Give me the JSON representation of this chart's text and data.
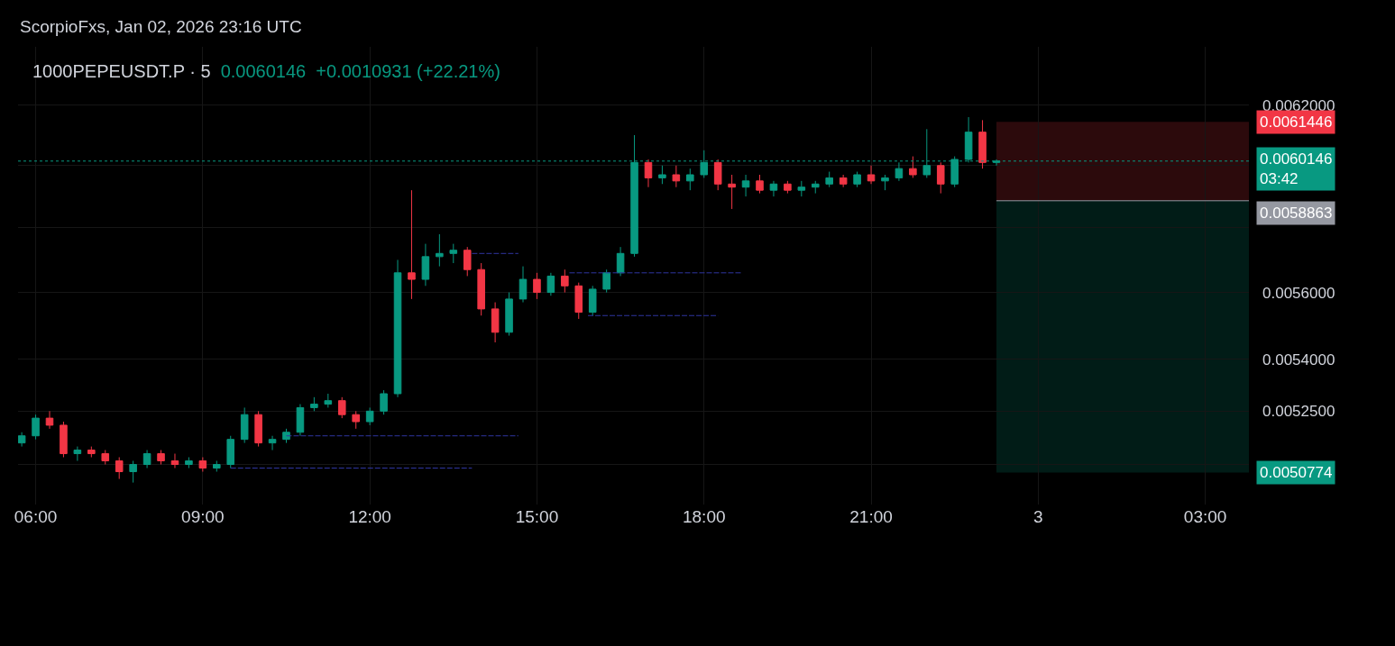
{
  "chart_data": {
    "type": "candlestick",
    "title": "1000PEPEUSDT.P · 5",
    "subtitle": "0.0060146  +0.0010931 (+22.21%)",
    "annotations": [
      "ScorpioFxs, Jan 02, 2026 23:16 UTC"
    ],
    "colors": [
      "#089981",
      "#089981",
      "#f23645",
      "#f23645",
      "#089981",
      "#f23645",
      "#f23645",
      "#f23645",
      "#089981",
      "#089981",
      "#f23645",
      "#f23645",
      "#089981",
      "#f23645",
      "#089981",
      "#089981",
      "#089981",
      "#f23645",
      "#089981",
      "#089981",
      "#089981",
      "#089981",
      "#089981",
      "#f23645",
      "#f23645",
      "#089981",
      "#089981",
      "#089981",
      "#f23645",
      "#089981",
      "#089981",
      "#089981",
      "#f23645",
      "#f23645",
      "#f23645",
      "#089981",
      "#089981",
      "#f23645",
      "#089981",
      "#f23645",
      "#f23645",
      "#089981",
      "#089981",
      "#089981",
      "#089981",
      "#f23645",
      "#089981",
      "#f23645",
      "#089981",
      "#089981",
      "#f23645",
      "#f23645",
      "#089981",
      "#f23645",
      "#089981",
      "#f23645",
      "#089981",
      "#089981",
      "#089981",
      "#f23645",
      "#089981",
      "#f23645",
      "#089981",
      "#089981",
      "#f23645",
      "#089981",
      "#f23645",
      "#089981",
      "#089981",
      "#f23645",
      "#089981"
    ],
    "x": [
      "2026-01-02T05:45",
      "2026-01-02T06:00",
      "2026-01-02T06:15",
      "2026-01-02T06:30",
      "2026-01-02T06:45",
      "2026-01-02T07:00",
      "2026-01-02T07:15",
      "2026-01-02T07:30",
      "2026-01-02T07:45",
      "2026-01-02T08:00",
      "2026-01-02T08:15",
      "2026-01-02T08:30",
      "2026-01-02T08:45",
      "2026-01-02T09:00",
      "2026-01-02T09:15",
      "2026-01-02T09:30",
      "2026-01-02T09:45",
      "2026-01-02T10:00",
      "2026-01-02T10:15",
      "2026-01-02T10:30",
      "2026-01-02T10:45",
      "2026-01-02T11:00",
      "2026-01-02T11:15",
      "2026-01-02T11:30",
      "2026-01-02T11:45",
      "2026-01-02T12:00",
      "2026-01-02T12:15",
      "2026-01-02T12:30",
      "2026-01-02T12:45",
      "2026-01-02T13:00",
      "2026-01-02T13:15",
      "2026-01-02T13:30",
      "2026-01-02T13:45",
      "2026-01-02T14:00",
      "2026-01-02T14:15",
      "2026-01-02T14:30",
      "2026-01-02T14:45",
      "2026-01-02T15:00",
      "2026-01-02T15:15",
      "2026-01-02T15:30",
      "2026-01-02T15:45",
      "2026-01-02T16:00",
      "2026-01-02T16:15",
      "2026-01-02T16:30",
      "2026-01-02T16:45",
      "2026-01-02T17:00",
      "2026-01-02T17:15",
      "2026-01-02T17:30",
      "2026-01-02T17:45",
      "2026-01-02T18:00",
      "2026-01-02T18:15",
      "2026-01-02T18:30",
      "2026-01-02T18:45",
      "2026-01-02T19:00",
      "2026-01-02T19:15",
      "2026-01-02T19:30",
      "2026-01-02T19:45",
      "2026-01-02T20:00",
      "2026-01-02T20:15",
      "2026-01-02T20:30",
      "2026-01-02T20:45",
      "2026-01-02T21:00",
      "2026-01-02T21:15",
      "2026-01-02T21:30",
      "2026-01-02T21:45",
      "2026-01-02T22:00",
      "2026-01-02T22:15",
      "2026-01-02T22:30",
      "2026-01-02T22:45",
      "2026-01-02T23:00",
      "2026-01-02T23:15"
    ],
    "ohlc": [
      [
        0.00516,
        0.00519,
        0.00515,
        0.00518
      ],
      [
        0.00518,
        0.00524,
        0.00517,
        0.00523
      ],
      [
        0.00523,
        0.00525,
        0.0052,
        0.00521
      ],
      [
        0.00521,
        0.00522,
        0.00512,
        0.00513
      ],
      [
        0.00513,
        0.00515,
        0.00511,
        0.00514
      ],
      [
        0.00514,
        0.00515,
        0.00512,
        0.00513
      ],
      [
        0.00513,
        0.00514,
        0.0051,
        0.00511
      ],
      [
        0.00511,
        0.00512,
        0.00506,
        0.00508
      ],
      [
        0.00508,
        0.00511,
        0.00505,
        0.0051
      ],
      [
        0.0051,
        0.00514,
        0.00509,
        0.00513
      ],
      [
        0.00513,
        0.00514,
        0.0051,
        0.00511
      ],
      [
        0.00511,
        0.00513,
        0.00509,
        0.0051
      ],
      [
        0.0051,
        0.00512,
        0.00509,
        0.00511
      ],
      [
        0.00511,
        0.00512,
        0.00508,
        0.00509
      ],
      [
        0.00509,
        0.00511,
        0.00508,
        0.0051
      ],
      [
        0.0051,
        0.00518,
        0.00509,
        0.00517
      ],
      [
        0.00517,
        0.00526,
        0.00516,
        0.00524
      ],
      [
        0.00524,
        0.00525,
        0.00515,
        0.00516
      ],
      [
        0.00516,
        0.00518,
        0.00514,
        0.00517
      ],
      [
        0.00517,
        0.0052,
        0.00516,
        0.00519
      ],
      [
        0.00519,
        0.00527,
        0.00518,
        0.00526
      ],
      [
        0.00526,
        0.00529,
        0.00525,
        0.00527
      ],
      [
        0.00527,
        0.0053,
        0.00526,
        0.00528
      ],
      [
        0.00528,
        0.00529,
        0.00523,
        0.00524
      ],
      [
        0.00524,
        0.00525,
        0.0052,
        0.00522
      ],
      [
        0.00522,
        0.00526,
        0.00521,
        0.00525
      ],
      [
        0.00525,
        0.00531,
        0.00524,
        0.0053
      ],
      [
        0.0053,
        0.0057,
        0.00529,
        0.00566
      ],
      [
        0.00566,
        0.00592,
        0.00558,
        0.00564
      ],
      [
        0.00564,
        0.00575,
        0.00562,
        0.00571
      ],
      [
        0.00571,
        0.00578,
        0.00568,
        0.00572
      ],
      [
        0.00572,
        0.00575,
        0.00569,
        0.00573
      ],
      [
        0.00573,
        0.00574,
        0.00565,
        0.00567
      ],
      [
        0.00567,
        0.00569,
        0.00553,
        0.00555
      ],
      [
        0.00555,
        0.00557,
        0.00545,
        0.00548
      ],
      [
        0.00548,
        0.0056,
        0.00547,
        0.00558
      ],
      [
        0.00558,
        0.00568,
        0.00557,
        0.00564
      ],
      [
        0.00564,
        0.00566,
        0.00558,
        0.0056
      ],
      [
        0.0056,
        0.00566,
        0.00559,
        0.00565
      ],
      [
        0.00565,
        0.00567,
        0.0056,
        0.00562
      ],
      [
        0.00562,
        0.00563,
        0.00552,
        0.00554
      ],
      [
        0.00554,
        0.00562,
        0.00553,
        0.00561
      ],
      [
        0.00561,
        0.00567,
        0.0056,
        0.00566
      ],
      [
        0.00566,
        0.00574,
        0.00565,
        0.00572
      ],
      [
        0.00572,
        0.0061,
        0.00571,
        0.00601
      ],
      [
        0.00601,
        0.00602,
        0.00593,
        0.00596
      ],
      [
        0.00596,
        0.006,
        0.00594,
        0.00597
      ],
      [
        0.00597,
        0.006,
        0.00593,
        0.00595
      ],
      [
        0.00595,
        0.00599,
        0.00592,
        0.00597
      ],
      [
        0.00597,
        0.00605,
        0.00596,
        0.00601
      ],
      [
        0.00601,
        0.00602,
        0.00592,
        0.00594
      ],
      [
        0.00594,
        0.00597,
        0.00586,
        0.00593
      ],
      [
        0.00593,
        0.00597,
        0.0059,
        0.00595
      ],
      [
        0.00595,
        0.00597,
        0.00591,
        0.00592
      ],
      [
        0.00592,
        0.00595,
        0.0059,
        0.00594
      ],
      [
        0.00594,
        0.00595,
        0.00591,
        0.00592
      ],
      [
        0.00592,
        0.00595,
        0.0059,
        0.00593
      ],
      [
        0.00593,
        0.00595,
        0.00591,
        0.00594
      ],
      [
        0.00594,
        0.00598,
        0.00593,
        0.00596
      ],
      [
        0.00596,
        0.00597,
        0.00593,
        0.00594
      ],
      [
        0.00594,
        0.00598,
        0.00593,
        0.00597
      ],
      [
        0.00597,
        0.006,
        0.00594,
        0.00595
      ],
      [
        0.00595,
        0.00597,
        0.00592,
        0.00596
      ],
      [
        0.00596,
        0.00601,
        0.00595,
        0.00599
      ],
      [
        0.00599,
        0.00603,
        0.00596,
        0.00597
      ],
      [
        0.00597,
        0.00612,
        0.00596,
        0.006
      ],
      [
        0.006,
        0.00601,
        0.00591,
        0.00594
      ],
      [
        0.00594,
        0.00603,
        0.00593,
        0.00602
      ],
      [
        0.00602,
        0.00616,
        0.00601,
        0.00611
      ],
      [
        0.00611,
        0.00615,
        0.00599,
        0.00601
      ],
      [
        0.00601,
        0.00602,
        0.006,
        0.0060146
      ]
    ],
    "series": [
      {
        "type": "line",
        "color": "#2f35a0",
        "line_style": "dashed",
        "x": [
          "2026-01-02T10:30",
          "2026-01-02T14:40"
        ],
        "values": [
          0.00518,
          0.00518
        ]
      },
      {
        "type": "line",
        "color": "#2f35a0",
        "line_style": "dashed",
        "x": [
          "2026-01-02T09:30",
          "2026-01-02T13:50"
        ],
        "values": [
          0.00509,
          0.00509
        ]
      },
      {
        "type": "line",
        "color": "#2f35a0",
        "line_style": "dashed",
        "x": [
          "2026-01-02T13:50",
          "2026-01-02T14:40"
        ],
        "values": [
          0.00572,
          0.00572
        ]
      },
      {
        "type": "line",
        "color": "#2f35a0",
        "line_style": "dashed",
        "x": [
          "2026-01-02T15:35",
          "2026-01-02T18:40"
        ],
        "values": [
          0.00566,
          0.00566
        ]
      },
      {
        "type": "line",
        "color": "#2f35a0",
        "line_style": "dashed",
        "x": [
          "2026-01-02T15:55",
          "2026-01-02T18:15"
        ],
        "values": [
          0.00553,
          0.00553
        ]
      }
    ],
    "bands": [
      {
        "axis": "y",
        "from": 0.0058863,
        "to": 0.0061446,
        "label": "0.0061446",
        "color": "#f23645"
      },
      {
        "axis": "y",
        "from": 0.0050774,
        "to": 0.0058863,
        "label": "0.0050774",
        "color": "#089981"
      }
    ],
    "ref_lines": [
      {
        "axis": "y",
        "value": 0.0060146,
        "label": "0.0060146\n03:42",
        "color": "#089981",
        "line_style": "dotted"
      },
      {
        "axis": "y",
        "value": 0.0058863,
        "label": "0.0058863",
        "color": "#9598a1",
        "line_style": "solid"
      }
    ],
    "log": true,
    "grid": true,
    "ylim": [
      0.00499,
      0.0064
    ],
    "yticks": [
      {
        "value": 0.0051,
        "label": null
      },
      {
        "value": 0.00525,
        "label": "0.0052500"
      },
      {
        "value": 0.0054,
        "label": "0.0054000"
      },
      {
        "value": 0.0056,
        "label": "0.0056000"
      },
      {
        "value": 0.0058,
        "label": null
      },
      {
        "value": 0.006,
        "label": null
      },
      {
        "value": 0.0062,
        "label": "0.0062000"
      }
    ],
    "xlim": [
      "2026-01-02T05:41",
      "2026-01-03T03:47"
    ],
    "xticks": [
      {
        "value": "2026-01-02T06:00",
        "label": "06:00"
      },
      {
        "value": "2026-01-02T09:00",
        "label": "09:00"
      },
      {
        "value": "2026-01-02T12:00",
        "label": "12:00"
      },
      {
        "value": "2026-01-02T15:00",
        "label": "15:00"
      },
      {
        "value": "2026-01-02T18:00",
        "label": "18:00"
      },
      {
        "value": "2026-01-02T21:00",
        "label": "21:00"
      },
      {
        "value": "2026-01-03T00:00",
        "label": "3"
      },
      {
        "value": "2026-01-03T03:00",
        "label": "03:00"
      }
    ]
  }
}
